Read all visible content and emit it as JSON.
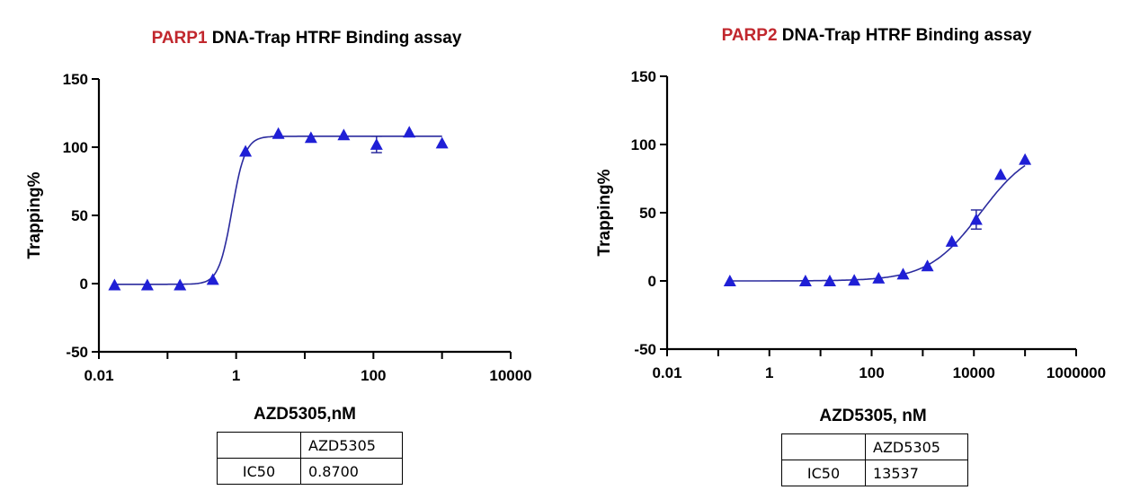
{
  "charts_meta": {
    "marker_color": "#1f1fd6",
    "curve_color": "#2b2b9e",
    "highlight_color": "#c1272d"
  },
  "chart_data": [
    {
      "type": "scatter",
      "title_highlight": "PARP1",
      "title_rest": " DNA-Trap HTRF Binding assay",
      "xlabel": "AZD5305,nM",
      "ylabel": "Trapping%",
      "x_scale": "log",
      "xlim": [
        0.01,
        10000
      ],
      "ylim": [
        -50,
        150
      ],
      "x_ticks": [
        "0.01",
        "1",
        "100",
        "10000"
      ],
      "y_ticks": [
        "-50",
        "0",
        "50",
        "100",
        "150"
      ],
      "grid": false,
      "series": [
        {
          "x": [
            0.0169,
            0.0508,
            0.152,
            0.457,
            1.37,
            4.12,
            12.3,
            37.0,
            111,
            333,
            1000
          ],
          "y": [
            -1,
            -1,
            -1,
            3,
            97,
            110,
            107,
            109,
            102,
            111,
            103
          ],
          "y_err": [
            0,
            0,
            0,
            0,
            0,
            0,
            0,
            0,
            6,
            0,
            0
          ]
        }
      ],
      "fit": {
        "model": "4PL",
        "bottom": -0.5,
        "top": 108,
        "ic50": 0.87,
        "hill": 4.5
      },
      "table": {
        "header": [
          "",
          "AZD5305"
        ],
        "rows": [
          [
            "IC50",
            "0.8700"
          ]
        ]
      }
    },
    {
      "type": "scatter",
      "title_highlight": "PARP2",
      "title_rest": " DNA-Trap HTRF Binding assay",
      "xlabel": "AZD5305, nM",
      "ylabel": "Trapping%",
      "x_scale": "log",
      "xlim": [
        0.01,
        1000000
      ],
      "ylim": [
        -50,
        150
      ],
      "x_ticks": [
        "0.01",
        "1",
        "100",
        "10000",
        "1000000"
      ],
      "y_ticks": [
        "-50",
        "0",
        "50",
        "100",
        "150"
      ],
      "grid": false,
      "series": [
        {
          "x": [
            0.169,
            5.08,
            15.2,
            45.7,
            137,
            412,
            1234,
            3704,
            11111,
            33333,
            100000
          ],
          "y": [
            0,
            0,
            0,
            0.5,
            2,
            5,
            11,
            29,
            45,
            78,
            89
          ],
          "y_err": [
            0,
            0,
            0,
            0,
            0,
            0,
            0,
            0,
            7,
            0,
            0
          ]
        }
      ],
      "fit": {
        "model": "4PL",
        "bottom": 0,
        "top": 100,
        "ic50": 13537,
        "hill": 0.85
      },
      "table": {
        "header": [
          "",
          "AZD5305"
        ],
        "rows": [
          [
            "IC50",
            "13537"
          ]
        ]
      }
    }
  ]
}
